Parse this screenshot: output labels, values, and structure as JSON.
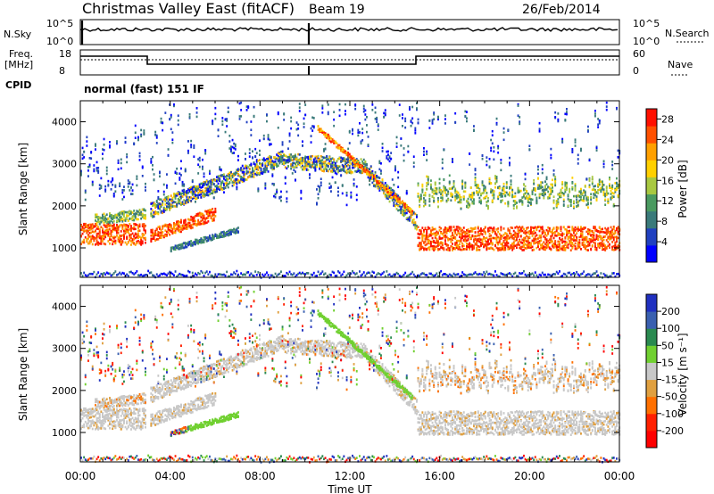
{
  "header": {
    "title": "Christmas Valley East (fitACF)",
    "beam": "Beam 19",
    "date": "26/Feb/2014"
  },
  "strip_panels": {
    "nsky_label": "N.Sky",
    "nsky_ticks": [
      "10^5",
      "10^0"
    ],
    "nsearch_label": "N.Search",
    "nsearch_ticks": [
      "10^5",
      "10^0"
    ],
    "freq_label_line1": "Freq.",
    "freq_label_line2": "[MHz]",
    "freq_ticks": [
      "18",
      "8"
    ],
    "nave_label": "Nave",
    "nave_ticks": [
      "60",
      "0"
    ],
    "cpid_label": "CPID",
    "cpid_text": "normal (fast) 151 IF"
  },
  "chart_data": [
    {
      "type": "heatmap",
      "name": "power",
      "ylabel": "Slant Range [km]",
      "xlabel": "Time UT",
      "x_ticks": [
        "00:00",
        "04:00",
        "08:00",
        "12:00",
        "16:00",
        "20:00",
        "00:00"
      ],
      "x_range_hours": [
        0,
        24
      ],
      "y_ticks": [
        1000,
        2000,
        3000,
        4000
      ],
      "ylim": [
        300,
        4500
      ],
      "colorbar_label": "Power [dB]",
      "colorbar_ticks": [
        4,
        8,
        12,
        16,
        20,
        24,
        28
      ],
      "colorbar_range": [
        0,
        30
      ],
      "colorbar_colors": [
        "#0000ff",
        "#2040c0",
        "#3a7a7a",
        "#4a9a60",
        "#a8c840",
        "#ffd000",
        "#ffa000",
        "#ff5000",
        "#ff1000"
      ]
    },
    {
      "type": "heatmap",
      "name": "velocity",
      "ylabel": "Slant Range [km]",
      "xlabel": "Time UT",
      "x_ticks": [
        "00:00",
        "04:00",
        "08:00",
        "12:00",
        "16:00",
        "20:00",
        "00:00"
      ],
      "x_range_hours": [
        0,
        24
      ],
      "y_ticks": [
        1000,
        2000,
        3000,
        4000
      ],
      "ylim": [
        300,
        4500
      ],
      "colorbar_label": "Velocity [m s⁻¹]",
      "colorbar_ticks": [
        200,
        100,
        50,
        15,
        -15,
        -50,
        -100,
        -200
      ],
      "colorbar_colors": [
        "#2030c0",
        "#3a60b0",
        "#2a8a50",
        "#70d030",
        "#c8c8c8",
        "#e0a040",
        "#ff7000",
        "#ff2000",
        "#ff0000"
      ]
    }
  ]
}
